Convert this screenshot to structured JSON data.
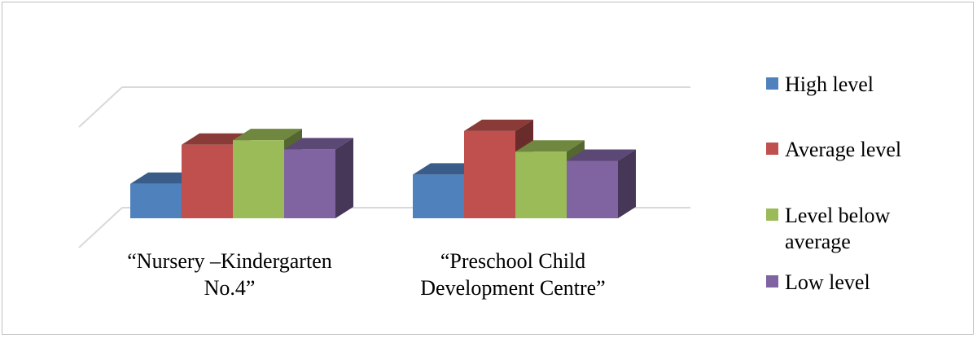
{
  "chart_data": {
    "type": "bar",
    "title": "",
    "xlabel": "",
    "ylabel": "",
    "categories": [
      [
        "“Nursery –Kindergarten",
        "No.4”"
      ],
      [
        "“Preschool Child",
        "Development Centre”"
      ]
    ],
    "series": [
      {
        "name": "High level",
        "values": [
          15,
          19
        ],
        "color": "#4f81bd"
      },
      {
        "name": "Average level",
        "values": [
          32,
          38
        ],
        "color": "#c0504d"
      },
      {
        "name": "Level below average",
        "values": [
          34,
          29
        ],
        "color": "#9bbb59"
      },
      {
        "name": "Low level",
        "values": [
          30,
          25
        ],
        "color": "#8064a2"
      }
    ],
    "legend": {
      "position": "right",
      "entries": [
        [
          "High level"
        ],
        [
          "Average level"
        ],
        [
          "Level below",
          "average"
        ],
        [
          "Low level"
        ]
      ]
    },
    "grid": true,
    "ylim": [
      0,
      100
    ],
    "style": "3d-clustered-column"
  }
}
